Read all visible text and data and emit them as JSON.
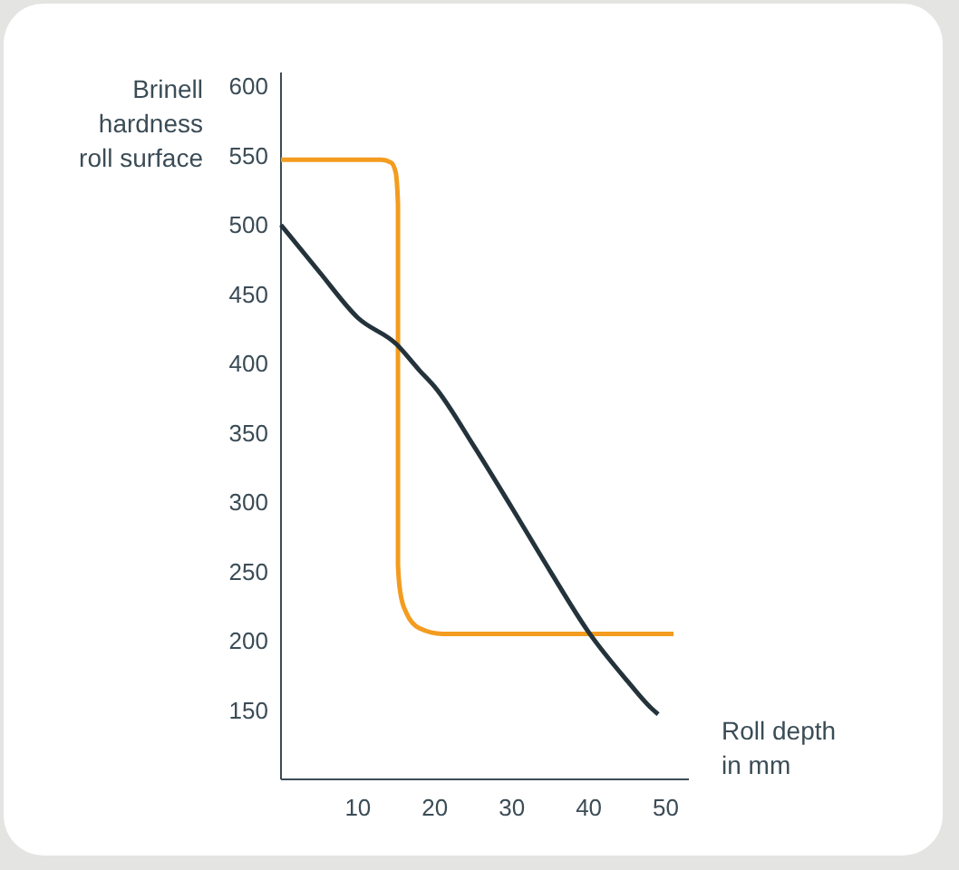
{
  "chart_data": {
    "type": "line",
    "xlabel": "Roll depth\nin mm",
    "ylabel": "Brinell\nhardness\nroll surface",
    "xlim": [
      0,
      53
    ],
    "ylim": [
      100,
      610
    ],
    "xticks": [
      10,
      20,
      30,
      40,
      50
    ],
    "yticks": [
      150,
      200,
      250,
      300,
      350,
      400,
      450,
      500,
      550,
      600
    ],
    "grid": false,
    "marker": "none",
    "line_style": "solid",
    "series": [
      {
        "color": "#f39c1f",
        "x": [
          0,
          13,
          14.3,
          14.9,
          15.2,
          15.2,
          15.5,
          16.3,
          18,
          21,
          51
        ],
        "values": [
          547,
          547,
          545,
          538,
          515,
          255,
          235,
          220,
          209,
          205,
          205
        ]
      },
      {
        "color": "#24333b",
        "x": [
          0,
          5,
          10,
          15,
          18,
          20,
          25,
          30,
          35,
          40,
          45,
          48,
          49
        ],
        "values": [
          500,
          466,
          433,
          414,
          395,
          383,
          341,
          296,
          250,
          206,
          171,
          152,
          147
        ]
      }
    ]
  }
}
